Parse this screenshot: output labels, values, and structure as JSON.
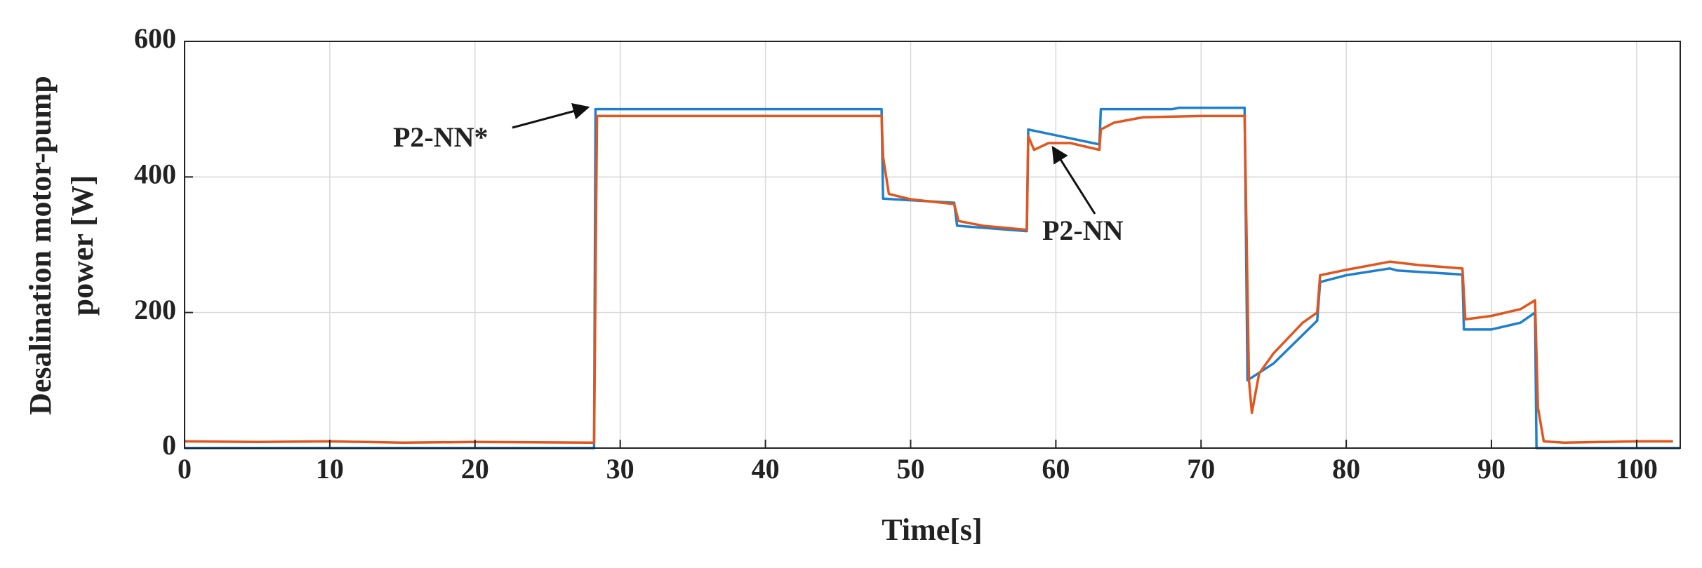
{
  "chart_data": {
    "type": "line",
    "xlabel": "Time[s]",
    "ylabel": [
      "Desalination motor-pump",
      "power [W]"
    ],
    "xlim": [
      0,
      103
    ],
    "ylim": [
      0,
      600
    ],
    "xticks": [
      0,
      10,
      20,
      30,
      40,
      50,
      60,
      70,
      80,
      90,
      100
    ],
    "yticks": [
      0,
      200,
      400,
      600
    ],
    "grid": true,
    "series": [
      {
        "name": "P2-NN*",
        "color": "#1f7fcf",
        "x": [
          0,
          28.2,
          28.3,
          48,
          48.1,
          53,
          53.2,
          58,
          58.1,
          63,
          63.1,
          68,
          68.5,
          73,
          73.2,
          75,
          78,
          78.2,
          80,
          83,
          83.5,
          88,
          88.1,
          90,
          92,
          93,
          93.1,
          103
        ],
        "values": [
          0,
          0,
          500,
          500,
          368,
          362,
          328,
          320,
          470,
          448,
          500,
          500,
          502,
          502,
          100,
          125,
          188,
          245,
          255,
          265,
          262,
          256,
          175,
          175,
          185,
          200,
          0,
          0
        ]
      },
      {
        "name": "P2-NN",
        "color": "#e0561f",
        "x": [
          0,
          5,
          10,
          15,
          20,
          28,
          28.2,
          28.4,
          35,
          40,
          48,
          48.1,
          48.5,
          50,
          53,
          53.3,
          55,
          58,
          58.1,
          58.5,
          59.5,
          61,
          63,
          63.1,
          64,
          66,
          70,
          73,
          73.3,
          73.5,
          74,
          75,
          77,
          78,
          78.2,
          80,
          83,
          85,
          88,
          88.2,
          90,
          92,
          93,
          93.2,
          93.6,
          95,
          100,
          102.5
        ],
        "values": [
          10,
          9,
          10,
          8,
          9,
          8,
          8,
          490,
          490,
          490,
          490,
          430,
          375,
          367,
          360,
          335,
          328,
          322,
          460,
          440,
          450,
          450,
          440,
          470,
          480,
          488,
          490,
          490,
          100,
          52,
          110,
          140,
          185,
          200,
          255,
          263,
          275,
          270,
          265,
          190,
          195,
          205,
          218,
          60,
          10,
          8,
          10,
          10
        ]
      }
    ]
  }
}
